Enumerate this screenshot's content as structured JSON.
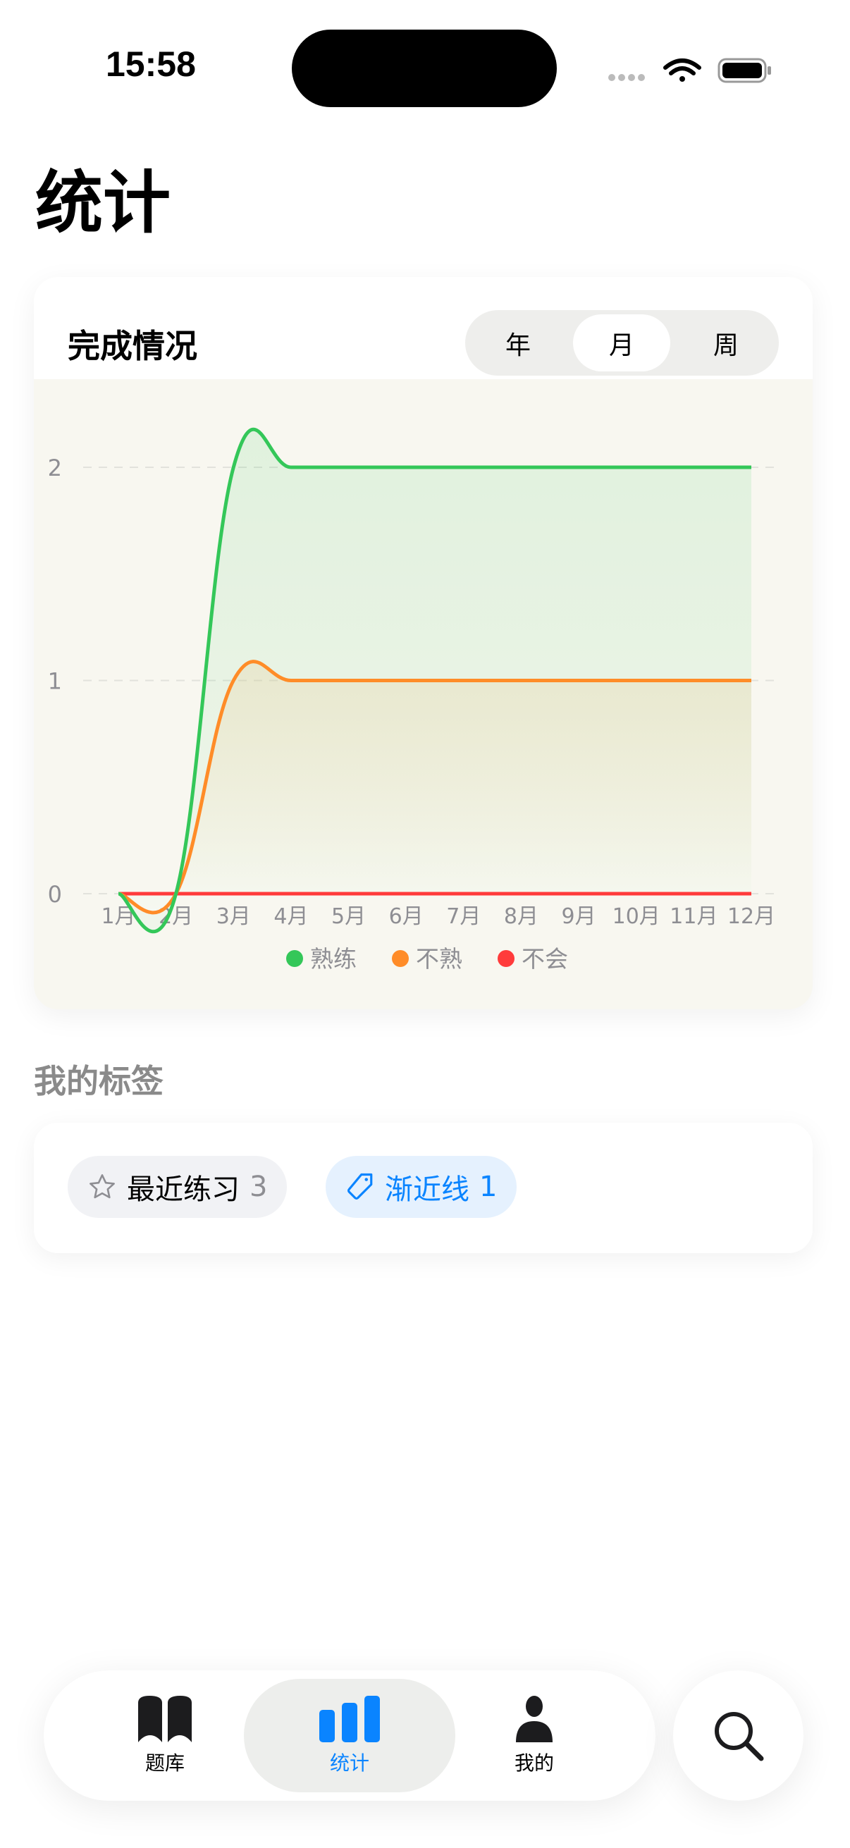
{
  "status_bar": {
    "time": "15:58"
  },
  "page_title": "统计",
  "completion_card": {
    "title": "完成情况",
    "segments": [
      {
        "label": "年",
        "selected": false
      },
      {
        "label": "月",
        "selected": true
      },
      {
        "label": "周",
        "selected": false
      }
    ]
  },
  "chart_data": {
    "type": "area",
    "stacked": true,
    "categories": [
      "1月",
      "2月",
      "3月",
      "4月",
      "5月",
      "6月",
      "7月",
      "8月",
      "9月",
      "10月",
      "11月",
      "12月"
    ],
    "y_ticks": [
      "0",
      "1",
      "2"
    ],
    "ylim": [
      0,
      2
    ],
    "grid": "horizontal dashed",
    "legend_placement": "bottom",
    "series": [
      {
        "name": "熟练",
        "color": "#34c759",
        "values": [
          0,
          0,
          1,
          1,
          1,
          1,
          1,
          1,
          1,
          1,
          1,
          1
        ]
      },
      {
        "name": "不熟",
        "color": "#ff8c28",
        "values": [
          0,
          0,
          1,
          1,
          1,
          1,
          1,
          1,
          1,
          1,
          1,
          1
        ]
      },
      {
        "name": "不会",
        "color": "#ff3b3b",
        "values": [
          0,
          0,
          0,
          0,
          0,
          0,
          0,
          0,
          0,
          0,
          0,
          0
        ]
      }
    ]
  },
  "tags_section": {
    "title": "我的标签",
    "tags": [
      {
        "icon": "star-icon",
        "label": "最近练习",
        "count": "3"
      },
      {
        "icon": "tag-icon",
        "label": "渐近线",
        "count": "1"
      }
    ]
  },
  "tab_bar": {
    "tabs": [
      {
        "label": "题库",
        "icon": "book-icon",
        "selected": false
      },
      {
        "label": "统计",
        "icon": "bar-chart-icon",
        "selected": true
      },
      {
        "label": "我的",
        "icon": "person-icon",
        "selected": false
      }
    ],
    "search_icon": "search-icon"
  },
  "colors": {
    "accent": "#0a84ff",
    "chart_bg": "#f8f7f0"
  }
}
